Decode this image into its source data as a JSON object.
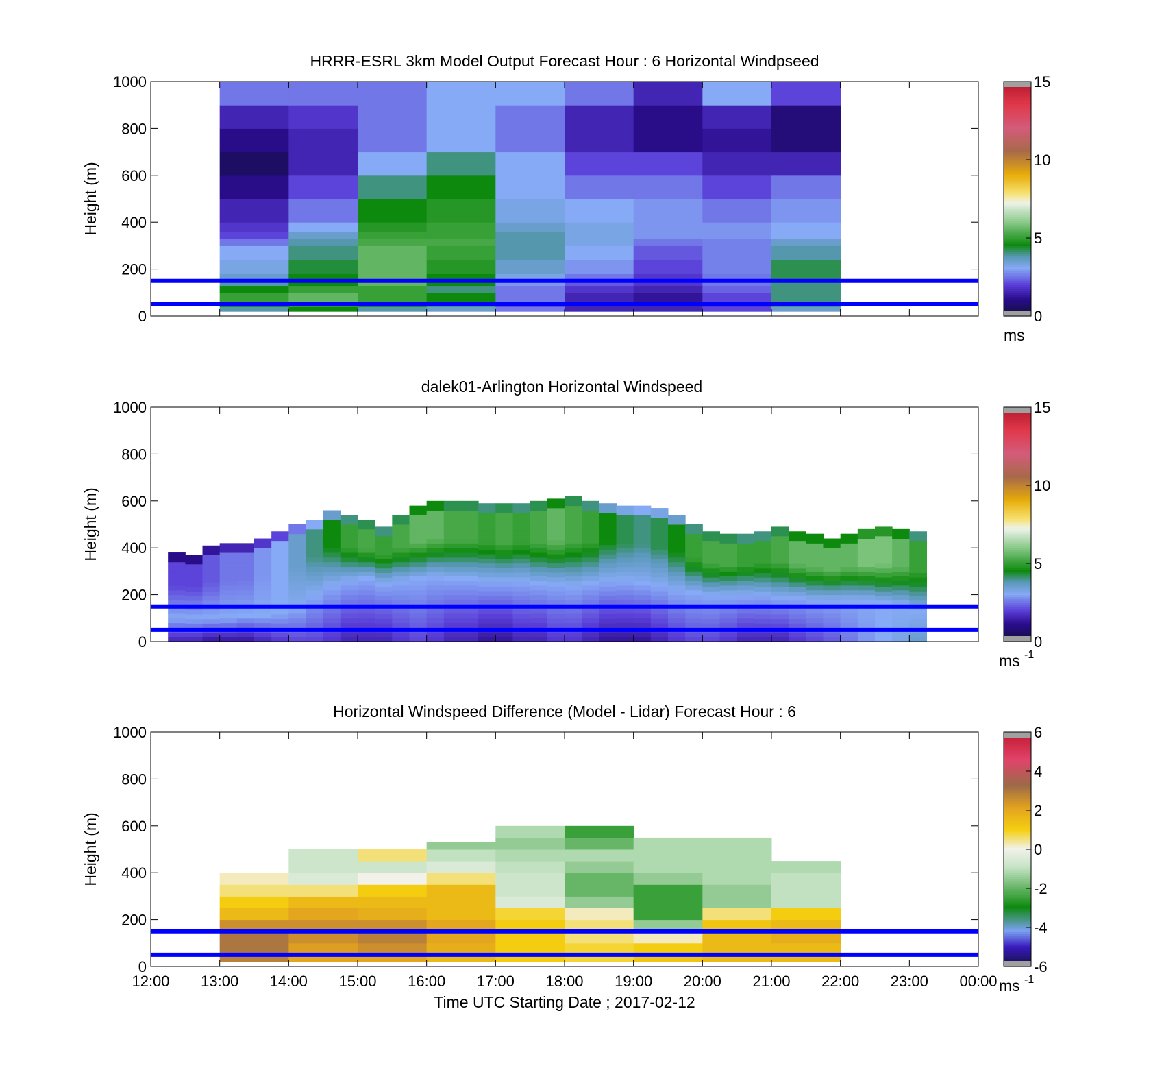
{
  "colors": {
    "reference_line": "#0000ff",
    "missing": "#a0a0a0"
  },
  "chart_data": [
    {
      "type": "heatmap",
      "title": "HRRR-ESRL 3km Model Output   Forecast Hour : 6 Horizontal Windpseed",
      "ylabel": "Height (m)",
      "xlabel": "",
      "ylim": [
        0,
        1000
      ],
      "yticks": [
        "0",
        "200",
        "400",
        "600",
        "800",
        "1000"
      ],
      "xlim": [
        "12:00",
        "00:00"
      ],
      "colorbar": {
        "min": 0,
        "max": 15,
        "ticks": [
          "0",
          "5",
          "10",
          "15"
        ],
        "unit_base": "ms",
        "unit_sup": "",
        "palette": "speed"
      },
      "reference_lines_m": [
        50,
        150
      ],
      "x_bins": [
        "13:00",
        "14:00",
        "15:00",
        "16:00",
        "17:00",
        "18:00",
        "19:00",
        "20:00",
        "21:00",
        "22:00"
      ],
      "y_bins_m": [
        20,
        40,
        60,
        100,
        130,
        160,
        180,
        240,
        300,
        330,
        360,
        400,
        500,
        600,
        700,
        800,
        900,
        1000
      ],
      "values": [
        [
          3.8,
          4.5,
          3.8,
          3.5,
          2.5,
          1.5,
          1.5,
          2.0,
          3.5
        ],
        [
          4.5,
          5.0,
          4.5,
          4.0,
          2.0,
          1.5,
          1.5,
          1.8,
          4.0
        ],
        [
          5.0,
          5.5,
          5.0,
          4.5,
          2.5,
          1.5,
          1.2,
          2.0,
          4.0
        ],
        [
          4.5,
          5.0,
          5.0,
          4.0,
          2.5,
          1.8,
          1.5,
          2.3,
          4.0
        ],
        [
          3.8,
          4.5,
          5.5,
          4.5,
          2.8,
          2.2,
          1.8,
          2.5,
          4.0
        ],
        [
          3.5,
          4.5,
          5.5,
          4.5,
          3.2,
          2.5,
          1.8,
          2.5,
          4.2
        ],
        [
          3.2,
          4.3,
          5.5,
          4.8,
          3.5,
          2.8,
          2.0,
          2.6,
          4.2
        ],
        [
          3.0,
          4.0,
          5.5,
          5.0,
          3.8,
          3.0,
          2.2,
          2.6,
          3.8
        ],
        [
          2.5,
          3.8,
          5.2,
          5.2,
          3.8,
          3.2,
          2.5,
          2.6,
          3.5
        ],
        [
          2.0,
          3.5,
          5.0,
          5.0,
          3.8,
          3.2,
          2.8,
          2.8,
          3.0
        ],
        [
          1.8,
          3.0,
          4.8,
          5.0,
          3.5,
          3.2,
          2.8,
          2.8,
          3.0
        ],
        [
          1.5,
          2.5,
          4.5,
          4.8,
          3.2,
          3.0,
          2.8,
          2.5,
          2.8
        ],
        [
          1.0,
          2.0,
          4.0,
          4.5,
          3.0,
          2.5,
          2.5,
          2.0,
          2.5
        ],
        [
          0.5,
          1.5,
          3.0,
          4.0,
          3.0,
          2.0,
          2.0,
          1.5,
          1.5
        ],
        [
          1.0,
          1.5,
          2.5,
          3.0,
          2.5,
          1.5,
          1.0,
          1.2,
          0.8
        ],
        [
          1.5,
          1.8,
          2.5,
          3.0,
          2.5,
          1.5,
          1.0,
          1.5,
          0.8
        ],
        [
          2.5,
          2.5,
          2.5,
          3.0,
          3.0,
          2.5,
          1.5,
          3.0,
          2.0
        ]
      ]
    },
    {
      "type": "heatmap",
      "title": "dalek01-Arlington  Horizontal Windspeed",
      "ylabel": "Height (m)",
      "xlabel": "",
      "ylim": [
        0,
        1000
      ],
      "yticks": [
        "0",
        "200",
        "400",
        "600",
        "800",
        "1000"
      ],
      "xlim": [
        "12:00",
        "00:00"
      ],
      "colorbar": {
        "min": 0,
        "max": 15,
        "ticks": [
          "0",
          "5",
          "10",
          "15"
        ],
        "unit_base": "ms",
        "unit_sup": "-1",
        "palette": "speed"
      },
      "reference_lines_m": [
        50,
        150
      ],
      "time_step_hours": 0.25,
      "profile_top_m": [
        380,
        370,
        410,
        420,
        420,
        440,
        470,
        500,
        520,
        560,
        540,
        520,
        490,
        540,
        580,
        600,
        600,
        600,
        590,
        590,
        590,
        600,
        610,
        620,
        600,
        590,
        580,
        580,
        570,
        540,
        500,
        470,
        460,
        460,
        470,
        490,
        470,
        460,
        440,
        460,
        480,
        490,
        480,
        470
      ],
      "profile_mid_m": [
        100,
        100,
        100,
        100,
        110,
        110,
        120,
        140,
        200,
        240,
        260,
        270,
        250,
        260,
        270,
        280,
        270,
        270,
        260,
        260,
        260,
        250,
        250,
        240,
        250,
        260,
        260,
        250,
        240,
        220,
        210,
        200,
        200,
        200,
        200,
        190,
        190,
        180,
        180,
        180,
        180,
        170,
        160,
        130
      ],
      "surface_speed": [
        1.5,
        1.5,
        1.2,
        1.2,
        1.2,
        1.5,
        1.8,
        2.0,
        2.0,
        1.8,
        1.5,
        1.5,
        1.5,
        1.8,
        2.0,
        1.8,
        1.5,
        1.5,
        1.2,
        1.2,
        1.5,
        1.5,
        1.8,
        1.8,
        1.5,
        1.2,
        1.2,
        1.2,
        1.5,
        1.8,
        2.0,
        2.0,
        1.8,
        1.5,
        1.5,
        1.5,
        1.8,
        2.0,
        2.2,
        2.5,
        2.8,
        3.0,
        3.2,
        3.5
      ],
      "upper_speed": [
        2.0,
        2.0,
        2.2,
        2.5,
        2.5,
        2.8,
        3.0,
        3.5,
        4.0,
        4.5,
        5.0,
        5.2,
        5.0,
        5.2,
        5.5,
        5.5,
        5.2,
        5.2,
        5.0,
        5.2,
        5.0,
        5.2,
        5.5,
        5.2,
        5.0,
        4.5,
        4.2,
        4.0,
        4.2,
        4.5,
        5.0,
        5.2,
        5.2,
        5.0,
        5.0,
        5.2,
        5.5,
        5.5,
        5.5,
        5.5,
        5.8,
        5.8,
        5.5,
        5.0
      ]
    },
    {
      "type": "heatmap",
      "title": "Horizontal Windspeed Difference (Model - Lidar) Forecast Hour : 6",
      "ylabel": "Height (m)",
      "xlabel": "Time UTC  Starting Date ; 2017-02-12",
      "ylim": [
        0,
        1000
      ],
      "yticks": [
        "0",
        "200",
        "400",
        "600",
        "800",
        "1000"
      ],
      "xticks": [
        "12:00",
        "13:00",
        "14:00",
        "15:00",
        "16:00",
        "17:00",
        "18:00",
        "19:00",
        "20:00",
        "21:00",
        "22:00",
        "23:00",
        "00:00"
      ],
      "colorbar": {
        "min": -6,
        "max": 6,
        "ticks": [
          "-6",
          "-4",
          "-2",
          "0",
          "2",
          "4",
          "6"
        ],
        "unit_base": "ms",
        "unit_sup": "-1",
        "palette": "diff"
      },
      "reference_lines_m": [
        50,
        150
      ],
      "x_bins": [
        "13:00",
        "14:00",
        "15:00",
        "16:00",
        "17:00",
        "18:00",
        "19:00",
        "20:00",
        "21:00",
        "22:00"
      ],
      "profile_top_m": [
        400,
        505,
        505,
        530,
        600,
        600,
        560,
        560,
        450
      ],
      "y_bins_m": [
        20,
        50,
        100,
        150,
        200,
        250,
        300,
        350,
        400,
        450,
        500,
        550,
        600
      ],
      "values": [
        [
          2.8,
          2.0,
          2.0,
          1.5,
          1.0,
          0.8,
          1.2,
          1.5,
          1.5
        ],
        [
          3.0,
          2.2,
          2.5,
          1.8,
          1.0,
          0.8,
          1.0,
          1.5,
          1.5
        ],
        [
          3.0,
          2.5,
          2.8,
          2.0,
          1.0,
          0.5,
          0.2,
          1.5,
          1.8
        ],
        [
          2.5,
          2.5,
          2.5,
          2.0,
          1.0,
          0.5,
          -1.5,
          1.2,
          1.5
        ],
        [
          1.5,
          2.0,
          1.8,
          1.5,
          0.8,
          0.2,
          -2.5,
          0.5,
          1.0
        ],
        [
          1.0,
          1.5,
          1.5,
          1.5,
          -0.5,
          -1.5,
          -2.5,
          -1.5,
          -1.0
        ],
        [
          0.5,
          0.5,
          1.0,
          1.5,
          -0.8,
          -2.0,
          -2.5,
          -1.5,
          -1.0
        ],
        [
          0.2,
          -0.5,
          0.0,
          0.5,
          -0.8,
          -2.0,
          -1.5,
          -1.2,
          -1.0
        ],
        [
          null,
          -0.8,
          -0.8,
          -0.5,
          -1.0,
          -1.5,
          -1.2,
          -1.2,
          -1.2
        ],
        [
          null,
          -0.8,
          0.5,
          -1.0,
          -1.2,
          -1.2,
          -1.2,
          -1.2,
          null
        ],
        [
          null,
          null,
          null,
          -1.5,
          -1.5,
          -2.0,
          -1.2,
          -1.2,
          null
        ],
        [
          null,
          null,
          null,
          null,
          -1.2,
          -2.5,
          null,
          null,
          null
        ]
      ]
    }
  ]
}
